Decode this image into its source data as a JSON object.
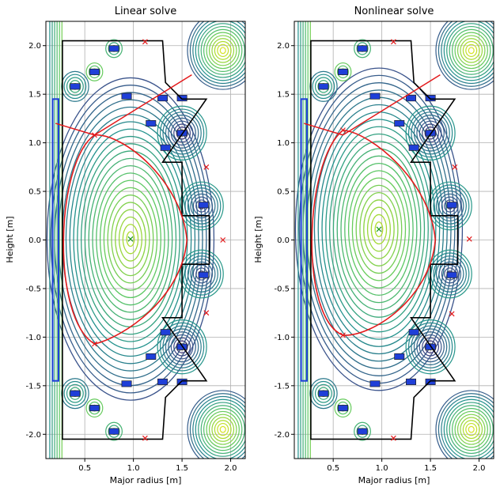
{
  "chart_data": [
    {
      "type": "contour",
      "title": "Linear solve",
      "xlabel": "Major radius [m]",
      "ylabel": "Height [m]",
      "xlim": [
        0.1,
        2.15
      ],
      "ylim": [
        -2.25,
        2.25
      ],
      "xticks": [
        "0.5",
        "1.0",
        "1.5",
        "2.0"
      ],
      "xtick_values": [
        0.5,
        1.0,
        1.5,
        2.0
      ],
      "yticks": [
        "-2.0",
        "-1.5",
        "-1.0",
        "-0.5",
        "0.0",
        "0.5",
        "1.0",
        "1.5",
        "2.0"
      ],
      "ytick_values": [
        -2.0,
        -1.5,
        -1.0,
        -0.5,
        0.0,
        0.5,
        1.0,
        1.5,
        2.0
      ],
      "grid": true,
      "o_points": [
        [
          0.97,
          0.01
        ]
      ],
      "x_points": [
        [
          1.12,
          2.04
        ],
        [
          0.6,
          1.08
        ],
        [
          1.75,
          0.75
        ],
        [
          1.92,
          0.0
        ],
        [
          1.75,
          -0.75
        ],
        [
          0.6,
          -1.07
        ],
        [
          1.12,
          -2.04
        ]
      ],
      "separatrix_color": "#e31a1c",
      "wall_color": "#000000",
      "coil_color": "#1f3fd8",
      "contour_colors": [
        "#440154",
        "#3b528b",
        "#21918c",
        "#5ec962",
        "#b5de2b",
        "#fde725"
      ]
    },
    {
      "type": "contour",
      "title": "Nonlinear solve",
      "xlabel": "Major radius [m]",
      "ylabel": "Height [m]",
      "xlim": [
        0.1,
        2.15
      ],
      "ylim": [
        -2.25,
        2.25
      ],
      "xticks": [
        "0.5",
        "1.0",
        "1.5",
        "2.0"
      ],
      "xtick_values": [
        0.5,
        1.0,
        1.5,
        2.0
      ],
      "yticks": [
        "-2.0",
        "-1.5",
        "-1.0",
        "-0.5",
        "0.0",
        "0.5",
        "1.0",
        "1.5",
        "2.0"
      ],
      "ytick_values": [
        -2.0,
        -1.5,
        -1.0,
        -0.5,
        0.0,
        0.5,
        1.0,
        1.5,
        2.0
      ],
      "grid": true,
      "o_points": [
        [
          0.97,
          0.11
        ]
      ],
      "x_points": [
        [
          1.12,
          2.04
        ],
        [
          0.6,
          1.13
        ],
        [
          1.75,
          0.75
        ],
        [
          1.9,
          0.01
        ],
        [
          1.72,
          -0.76
        ],
        [
          0.6,
          -0.98
        ],
        [
          1.12,
          -2.04
        ]
      ],
      "separatrix_color": "#e31a1c",
      "wall_color": "#000000",
      "coil_color": "#1f3fd8",
      "contour_colors": [
        "#440154",
        "#3b528b",
        "#21918c",
        "#5ec962",
        "#b5de2b",
        "#fde725"
      ]
    }
  ]
}
